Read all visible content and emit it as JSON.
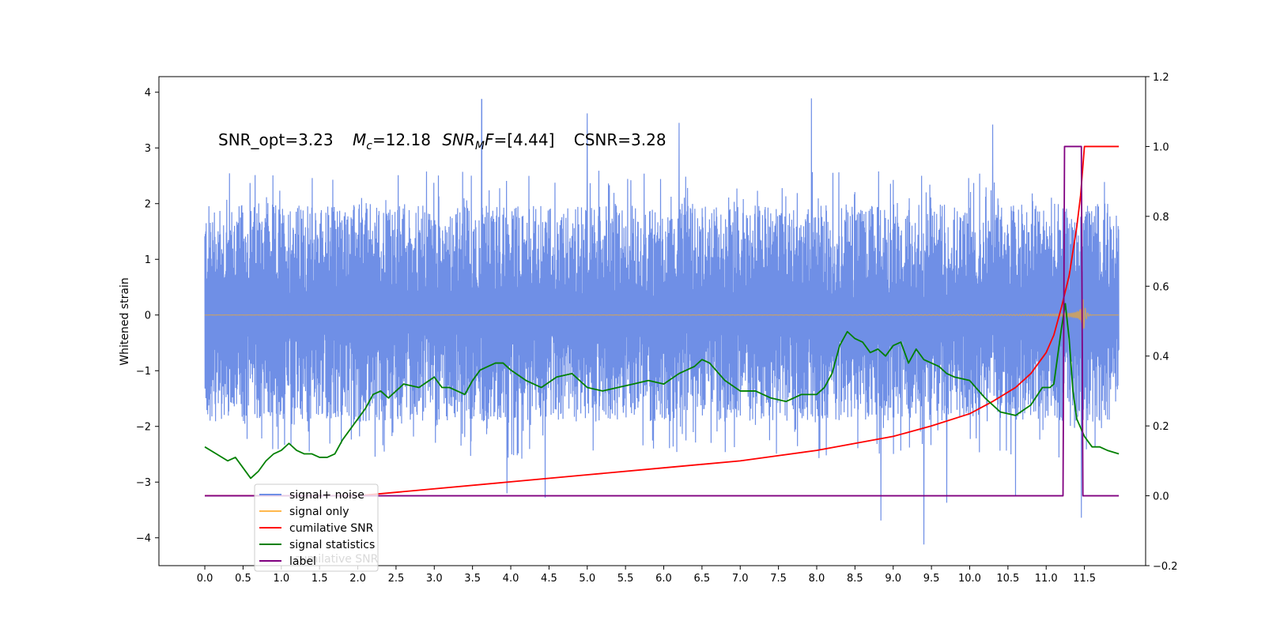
{
  "chart_data": {
    "type": "line",
    "annotation": {
      "snr_opt": "SNR_opt=3.23",
      "mc_symbol": "M",
      "mc_sub": "c",
      "mc_value": "=12.18",
      "snrmf_symbol": "SNR",
      "snrmf_sub": "M",
      "snrmf_f": "F",
      "snrmf_value": "=[4.44]",
      "csnr": "CSNR=3.28"
    },
    "ylabel_left": "Whitened strain",
    "xlim": [
      -0.6,
      12.3
    ],
    "ylim_left": [
      -4.5,
      4.28
    ],
    "ylim_right": [
      -0.2,
      1.2
    ],
    "x_ticks": [
      0.0,
      0.5,
      1.0,
      1.5,
      2.0,
      2.5,
      3.0,
      3.5,
      4.0,
      4.5,
      5.0,
      5.5,
      6.0,
      6.5,
      7.0,
      7.5,
      8.0,
      8.5,
      9.0,
      9.5,
      10.0,
      10.5,
      11.0,
      11.5
    ],
    "x_tick_labels": [
      "0.0",
      "0.5",
      "1.0",
      "1.5",
      "2.0",
      "2.5",
      "3.0",
      "3.5",
      "4.0",
      "4.5",
      "5.0",
      "5.5",
      "6.0",
      "6.5",
      "7.0",
      "7.5",
      "8.0",
      "8.5",
      "9.0",
      "9.5",
      "10.0",
      "10.5",
      "11.0",
      "11.5"
    ],
    "y_left_ticks": [
      -4,
      -3,
      -2,
      -1,
      0,
      1,
      2,
      3,
      4
    ],
    "y_left_tick_labels": [
      "−4",
      "−3",
      "−2",
      "−1",
      "0",
      "1",
      "2",
      "3",
      "4"
    ],
    "y_right_ticks": [
      -0.2,
      0.0,
      0.2,
      0.4,
      0.6,
      0.8,
      1.0,
      1.2
    ],
    "y_right_tick_labels": [
      "−0.2",
      "0.0",
      "0.2",
      "0.4",
      "0.6",
      "0.8",
      "1.0",
      "1.2"
    ],
    "noise": {
      "x_start": 0.0,
      "x_end": 11.95,
      "samples": 4000,
      "envelope_upper": 2.3,
      "envelope_lower": -2.2,
      "peaks": [
        {
          "x": 3.62,
          "y": 3.87
        },
        {
          "x": 7.93,
          "y": 3.89
        },
        {
          "x": 5.0,
          "y": 3.62
        },
        {
          "x": 6.2,
          "y": 3.45
        },
        {
          "x": 8.84,
          "y": 3.6
        },
        {
          "x": 10.3,
          "y": 3.42
        },
        {
          "x": 9.4,
          "y": -4.12
        },
        {
          "x": 8.84,
          "y": -3.69
        },
        {
          "x": 11.46,
          "y": -3.64
        },
        {
          "x": 9.7,
          "y": -3.37
        },
        {
          "x": 4.45,
          "y": -3.28
        },
        {
          "x": 10.6,
          "y": -3.24
        },
        {
          "x": 3.95,
          "y": -3.2
        }
      ]
    },
    "signal_only": {
      "x_start": 0.0,
      "x_end": 11.95,
      "merger_x": 11.48,
      "peak_amplitude": 0.45
    },
    "cumulative_snr": {
      "x": [
        0.0,
        1.0,
        2.0,
        3.0,
        4.0,
        5.0,
        6.0,
        7.0,
        7.5,
        8.0,
        8.5,
        9.0,
        9.5,
        10.0,
        10.3,
        10.6,
        10.8,
        11.0,
        11.1,
        11.2,
        11.3,
        11.4,
        11.45,
        11.5,
        11.55,
        11.95
      ],
      "y": [
        0.0,
        0.0,
        0.0,
        0.02,
        0.04,
        0.06,
        0.08,
        0.1,
        0.115,
        0.13,
        0.15,
        0.17,
        0.2,
        0.235,
        0.27,
        0.31,
        0.35,
        0.41,
        0.46,
        0.54,
        0.63,
        0.77,
        0.86,
        1.0,
        1.0,
        1.0
      ]
    },
    "signal_statistics": {
      "x": [
        0.0,
        0.15,
        0.3,
        0.4,
        0.5,
        0.6,
        0.7,
        0.8,
        0.9,
        1.0,
        1.1,
        1.2,
        1.3,
        1.4,
        1.5,
        1.6,
        1.7,
        1.8,
        1.9,
        2.0,
        2.1,
        2.2,
        2.3,
        2.4,
        2.5,
        2.6,
        2.8,
        3.0,
        3.1,
        3.2,
        3.4,
        3.5,
        3.6,
        3.7,
        3.8,
        3.9,
        4.0,
        4.2,
        4.4,
        4.6,
        4.8,
        5.0,
        5.2,
        5.4,
        5.6,
        5.8,
        6.0,
        6.2,
        6.4,
        6.5,
        6.6,
        6.8,
        7.0,
        7.2,
        7.4,
        7.6,
        7.8,
        8.0,
        8.1,
        8.2,
        8.3,
        8.4,
        8.5,
        8.6,
        8.7,
        8.8,
        8.9,
        9.0,
        9.1,
        9.2,
        9.3,
        9.4,
        9.5,
        9.6,
        9.7,
        9.8,
        10.0,
        10.2,
        10.4,
        10.6,
        10.8,
        10.95,
        11.05,
        11.1,
        11.2,
        11.25,
        11.3,
        11.35,
        11.4,
        11.5,
        11.6,
        11.7,
        11.8,
        11.95
      ],
      "y": [
        0.14,
        0.12,
        0.1,
        0.11,
        0.08,
        0.05,
        0.07,
        0.1,
        0.12,
        0.13,
        0.15,
        0.13,
        0.12,
        0.12,
        0.11,
        0.11,
        0.12,
        0.16,
        0.19,
        0.22,
        0.25,
        0.29,
        0.3,
        0.28,
        0.3,
        0.32,
        0.31,
        0.34,
        0.31,
        0.31,
        0.29,
        0.33,
        0.36,
        0.37,
        0.38,
        0.38,
        0.36,
        0.33,
        0.31,
        0.34,
        0.35,
        0.31,
        0.3,
        0.31,
        0.32,
        0.33,
        0.32,
        0.35,
        0.37,
        0.39,
        0.38,
        0.33,
        0.3,
        0.3,
        0.28,
        0.27,
        0.29,
        0.29,
        0.31,
        0.35,
        0.43,
        0.47,
        0.45,
        0.44,
        0.41,
        0.42,
        0.4,
        0.43,
        0.44,
        0.38,
        0.42,
        0.39,
        0.38,
        0.37,
        0.35,
        0.34,
        0.33,
        0.28,
        0.24,
        0.23,
        0.26,
        0.31,
        0.31,
        0.32,
        0.48,
        0.55,
        0.45,
        0.3,
        0.22,
        0.17,
        0.14,
        0.14,
        0.13,
        0.12
      ]
    },
    "label_step": {
      "x": [
        0.0,
        11.22,
        11.24,
        11.46,
        11.48,
        11.95
      ],
      "y": [
        0.0,
        0.0,
        1.0,
        1.0,
        0.0,
        0.0
      ]
    },
    "legend": {
      "location": "lower-left",
      "entries": [
        {
          "label": "signal+ noise",
          "color": "#6f8fe6"
        },
        {
          "label": "signal only",
          "color": "#ffb84d"
        },
        {
          "label": "cumilative SNR",
          "color": "#ff0000"
        },
        {
          "label": "signal statistics",
          "color": "#008000"
        },
        {
          "label": "label",
          "color": "#800080"
        }
      ],
      "ghost_text": "cumilative SNR"
    },
    "colors": {
      "noise": "#6f8fe6",
      "signal_only": "#ffb84d",
      "signal_overlap": "#c7a06a",
      "cumulative_snr": "#ff0000",
      "signal_statistics": "#008000",
      "label": "#800080"
    }
  }
}
